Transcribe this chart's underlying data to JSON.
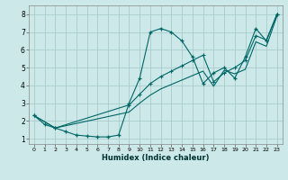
{
  "xlabel": "Humidex (Indice chaleur)",
  "bg_color": "#cce8e8",
  "grid_color": "#aacccc",
  "line_color": "#006666",
  "xlim": [
    -0.5,
    23.5
  ],
  "ylim": [
    0.7,
    8.5
  ],
  "xticks": [
    0,
    1,
    2,
    3,
    4,
    5,
    6,
    7,
    8,
    9,
    10,
    11,
    12,
    13,
    14,
    15,
    16,
    17,
    18,
    19,
    20,
    21,
    22,
    23
  ],
  "yticks": [
    1,
    2,
    3,
    4,
    5,
    6,
    7,
    8
  ],
  "curve1_x": [
    0,
    1,
    2,
    3,
    4,
    5,
    6,
    7,
    8,
    9,
    10,
    11,
    12,
    13,
    14,
    15,
    16,
    17,
    18,
    19,
    20,
    21,
    22,
    23
  ],
  "curve1_y": [
    2.3,
    1.8,
    1.6,
    1.4,
    1.2,
    1.15,
    1.1,
    1.1,
    1.2,
    3.0,
    4.4,
    7.0,
    7.2,
    7.0,
    6.5,
    5.6,
    4.1,
    4.7,
    5.0,
    4.4,
    5.6,
    7.2,
    6.5,
    8.0
  ],
  "curve2_x": [
    0,
    2,
    9,
    10,
    11,
    12,
    13,
    14,
    15,
    16,
    17,
    18,
    19,
    20,
    21,
    22,
    23
  ],
  "curve2_y": [
    2.3,
    1.6,
    2.9,
    3.5,
    4.1,
    4.5,
    4.8,
    5.1,
    5.4,
    5.7,
    4.2,
    4.7,
    5.0,
    5.4,
    6.8,
    6.55,
    8.0
  ],
  "curve3_x": [
    0,
    2,
    9,
    10,
    11,
    12,
    13,
    14,
    15,
    16,
    17,
    18,
    19,
    20,
    21,
    22,
    23
  ],
  "curve3_y": [
    2.3,
    1.6,
    2.5,
    3.0,
    3.45,
    3.8,
    4.05,
    4.3,
    4.55,
    4.8,
    3.95,
    4.85,
    4.65,
    4.9,
    6.45,
    6.2,
    7.9
  ]
}
